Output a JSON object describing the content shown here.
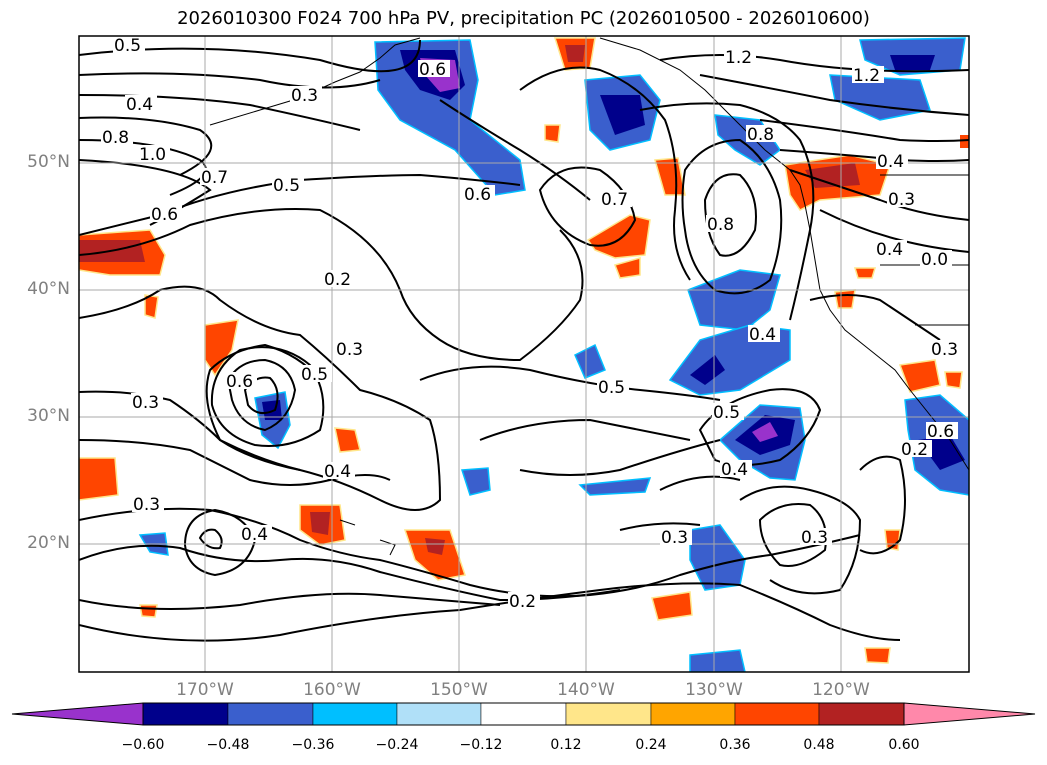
{
  "title": "2026010300 F024 700 hPa PV, precipitation PC (2026010500 - 2026010600)",
  "axes": {
    "lat_labels": [
      "50°N",
      "40°N",
      "30°N",
      "20°N"
    ],
    "lon_labels": [
      "170°W",
      "160°W",
      "150°W",
      "140°W",
      "130°W",
      "120°W"
    ]
  },
  "colorbar": {
    "ticks": [
      "−0.60",
      "−0.48",
      "−0.36",
      "−0.24",
      "−0.12",
      "0.12",
      "0.24",
      "0.36",
      "0.48",
      "0.60"
    ],
    "colors": [
      "#9932cc",
      "#00008b",
      "#3a5fcd",
      "#00bfff",
      "#b0e0f8",
      "#ffffff",
      "#ffe68a",
      "#ffa500",
      "#ff4500",
      "#b22222",
      "#ff88aa"
    ]
  },
  "pv_contour_labels": [
    "0.5",
    "0.4",
    "0.8",
    "1.0",
    "0.7",
    "0.6",
    "0.5",
    "0.3",
    "0.6",
    "0.2",
    "0.3",
    "0.5",
    "0.6",
    "0.3",
    "0.4",
    "0.3",
    "0.4",
    "0.2",
    "0.6",
    "0.7",
    "0.8",
    "1.2",
    "1.2",
    "0.8",
    "0.4",
    "0.5",
    "0.5",
    "0.4",
    "0.3",
    "0.3",
    "0.4",
    "0.3",
    "0.0",
    "0.3",
    "0.6",
    "0.2",
    "0.4"
  ],
  "colors": {
    "grid": "#a9a9a9",
    "axis_label": "#808080",
    "contour": "#000000"
  }
}
